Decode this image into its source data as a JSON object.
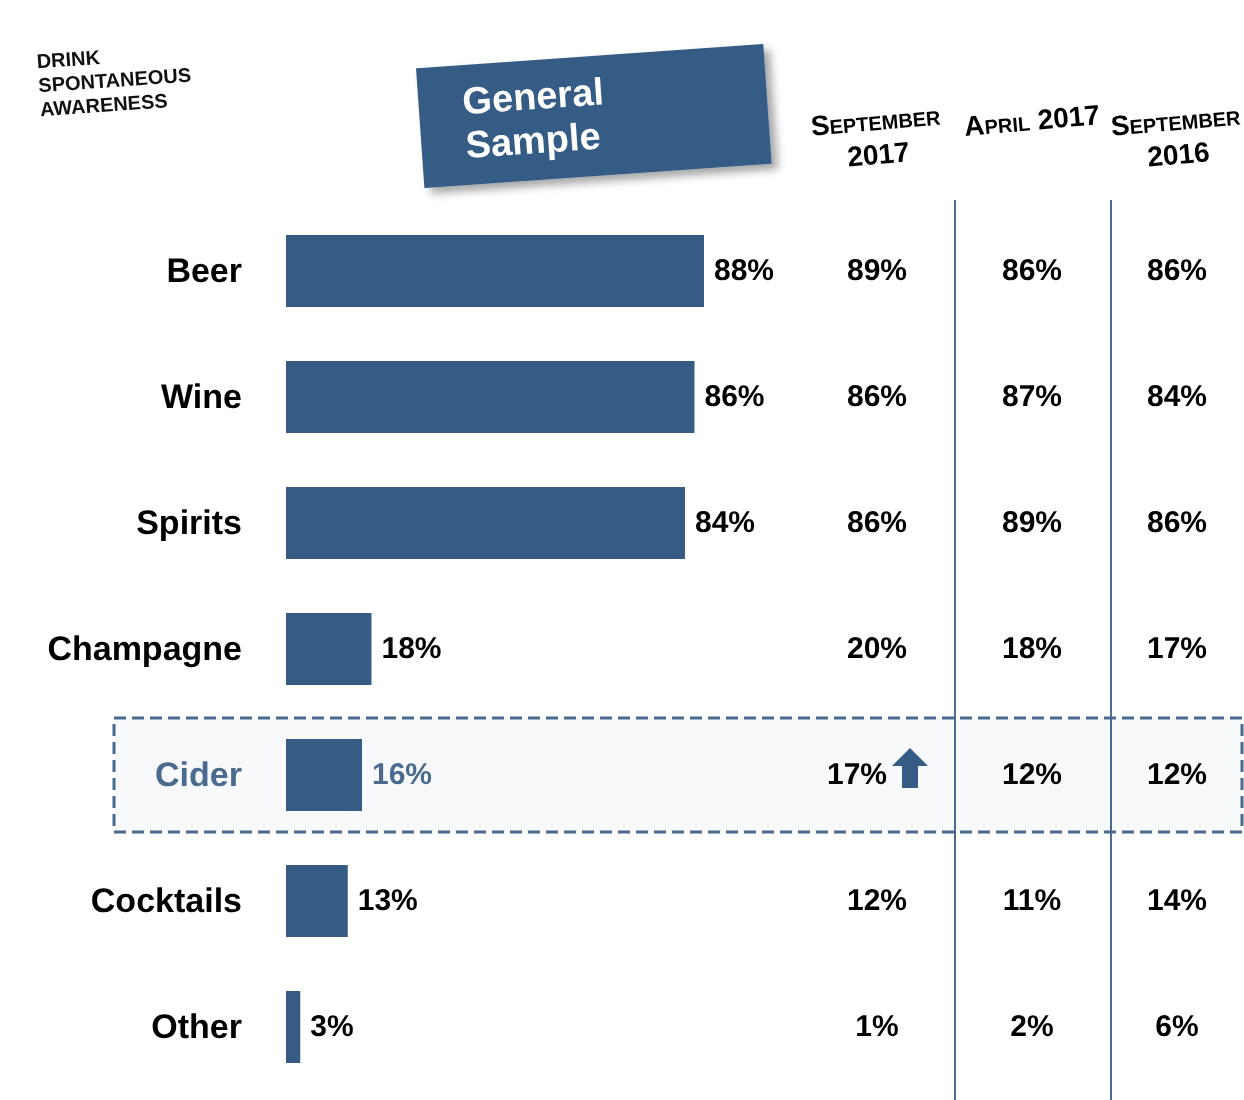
{
  "chart_data": [
    {
      "type": "bar",
      "orientation": "horizontal",
      "title": "General Sample",
      "ylabel": "DRINK SPONTANEOUS AWARENESS",
      "categories": [
        "Beer",
        "Wine",
        "Spirits",
        "Champagne",
        "Cider",
        "Cocktails",
        "Other"
      ],
      "values": [
        88,
        86,
        84,
        18,
        16,
        13,
        3
      ],
      "value_labels": [
        "88%",
        "86%",
        "84%",
        "18%",
        "16%",
        "13%",
        "3%"
      ],
      "color": "#365b85",
      "bands": [
        {
          "axis": "y",
          "from": "Cider",
          "to": "Cider",
          "color": "#4a6b8f"
        }
      ]
    },
    {
      "type": "other",
      "title": "September 2017",
      "annotations": [
        "89%",
        "86%",
        "86%",
        "20%",
        "17%",
        "12%",
        "1%"
      ]
    },
    {
      "type": "other",
      "title": "April 2017",
      "annotations": [
        "86%",
        "87%",
        "89%",
        "18%",
        "12%",
        "11%",
        "2%"
      ]
    },
    {
      "type": "other",
      "title": "September 2016",
      "annotations": [
        "86%",
        "84%",
        "86%",
        "17%",
        "12%",
        "14%",
        "6%"
      ]
    }
  ]
}
